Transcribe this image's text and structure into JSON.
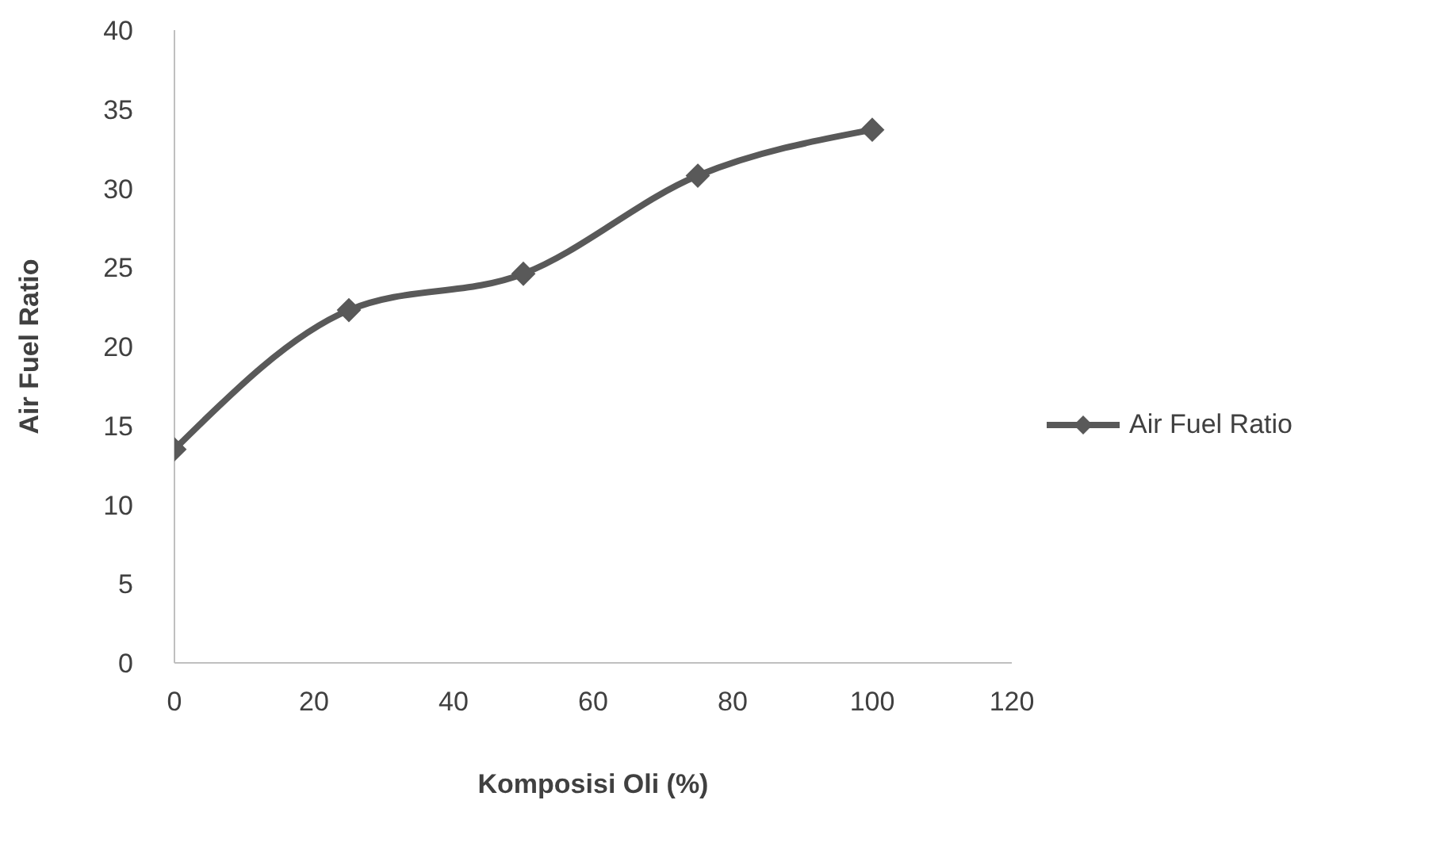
{
  "chart_data": {
    "type": "line",
    "xlabel": "Komposisi Oli (%)",
    "ylabel": "Air Fuel Ratio",
    "x": [
      0,
      25,
      50,
      75,
      100
    ],
    "series": [
      {
        "name": "Air Fuel Ratio",
        "color": "#595959",
        "values": [
          13.5,
          22.3,
          24.6,
          30.8,
          33.7
        ]
      }
    ],
    "xlim": [
      0,
      120
    ],
    "xticks": [
      0,
      20,
      40,
      60,
      80,
      100,
      120
    ],
    "ylim": [
      0,
      40
    ],
    "yticks": [
      0,
      5,
      10,
      15,
      20,
      25,
      30,
      35,
      40
    ],
    "marker": "diamond",
    "legend": "right",
    "grid": false
  }
}
